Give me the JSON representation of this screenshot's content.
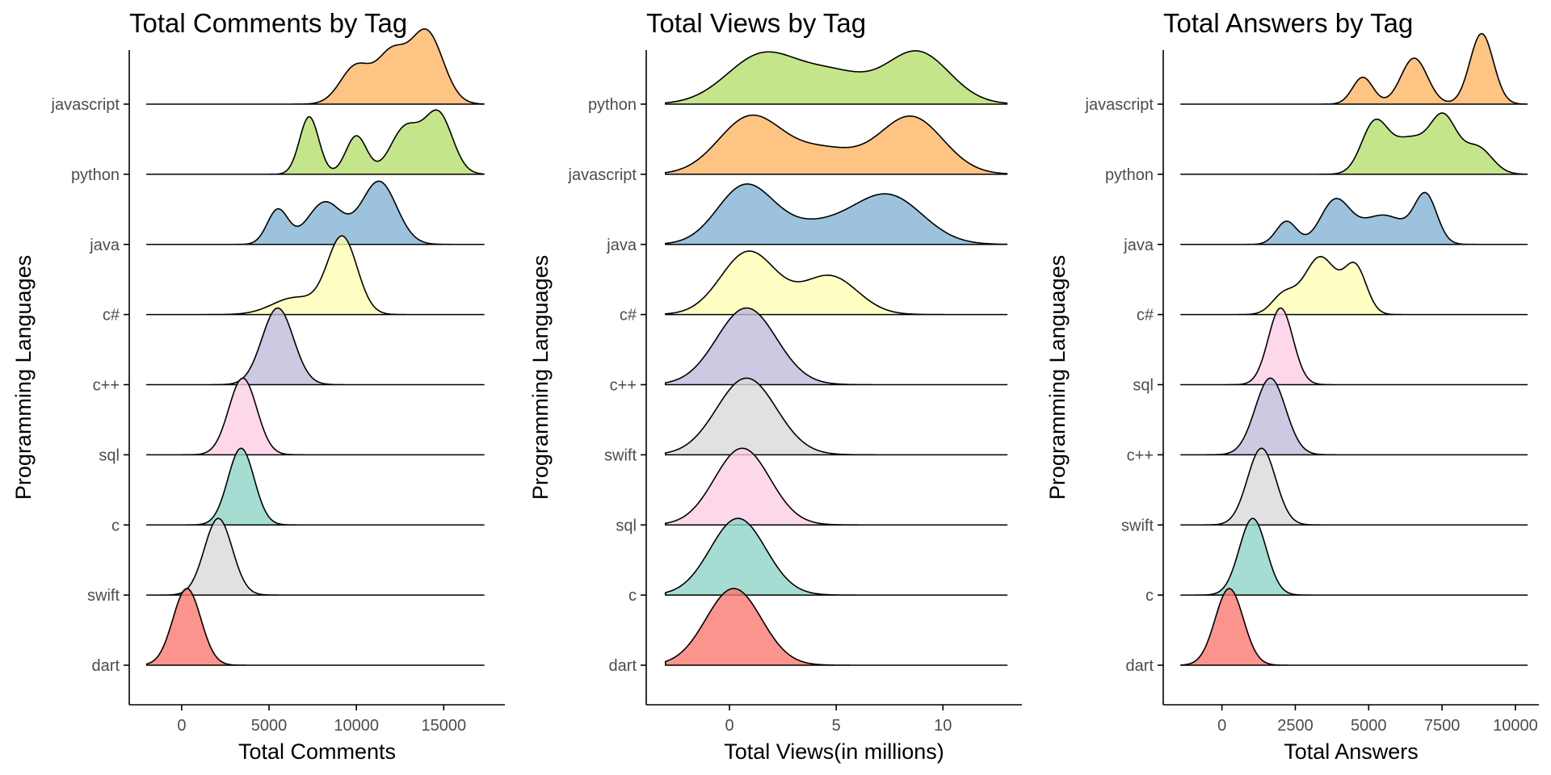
{
  "chart_data": [
    {
      "type": "ridgeline",
      "title": "Total Comments by Tag",
      "xlabel": "Total Comments",
      "ylabel": "Programming Languages",
      "xlim": [
        -3000,
        18500
      ],
      "xticks": [
        0,
        5000,
        10000,
        15000
      ],
      "xtick_labels": [
        "0",
        "5000",
        "10000",
        "15000"
      ],
      "line_x_range": [
        -2000,
        17300
      ],
      "categories_bottom_to_top": [
        "dart",
        "swift",
        "c",
        "sql",
        "c++",
        "c#",
        "java",
        "python",
        "javascript"
      ],
      "series": [
        {
          "name": "dart",
          "color": "#F8766D",
          "peaks": [
            [
              300,
              800,
              1.0
            ]
          ]
        },
        {
          "name": "swift",
          "color": "#D9D9D9",
          "peaks": [
            [
              2100,
              800,
              1.0
            ]
          ]
        },
        {
          "name": "c",
          "color": "#8DD3C7",
          "peaks": [
            [
              3400,
              750,
              1.0
            ]
          ]
        },
        {
          "name": "sql",
          "color": "#FCCDE5",
          "peaks": [
            [
              3500,
              800,
              1.0
            ]
          ]
        },
        {
          "name": "c++",
          "color": "#BEBADA",
          "peaks": [
            [
              5500,
              900,
              1.0
            ]
          ]
        },
        {
          "name": "c#",
          "color": "#FFFFB3",
          "peaks": [
            [
              9200,
              850,
              1.0
            ],
            [
              6500,
              1300,
              0.22
            ]
          ]
        },
        {
          "name": "java",
          "color": "#80B1D3",
          "peaks": [
            [
              5500,
              600,
              0.45
            ],
            [
              8200,
              1000,
              0.55
            ],
            [
              11300,
              1000,
              0.82
            ]
          ]
        },
        {
          "name": "python",
          "color": "#B3DE69",
          "peaks": [
            [
              7300,
              550,
              0.75
            ],
            [
              10000,
              600,
              0.5
            ],
            [
              12800,
              850,
              0.6
            ],
            [
              14700,
              800,
              0.78
            ]
          ]
        },
        {
          "name": "javascript",
          "color": "#FDB462",
          "peaks": [
            [
              10000,
              900,
              0.5
            ],
            [
              12000,
              800,
              0.6
            ],
            [
              14000,
              950,
              0.95
            ]
          ]
        }
      ]
    },
    {
      "type": "ridgeline",
      "title": "Total Views by Tag",
      "xlabel": "Total Views(in millions)",
      "ylabel": "Programming Languages",
      "xlim": [
        -3.9,
        13.7
      ],
      "xticks": [
        0,
        5,
        10
      ],
      "xtick_labels": [
        "0",
        "5",
        "10"
      ],
      "line_x_range": [
        -3,
        13
      ],
      "categories_bottom_to_top": [
        "dart",
        "c",
        "sql",
        "swift",
        "c++",
        "c#",
        "java",
        "javascript",
        "python"
      ],
      "series": [
        {
          "name": "dart",
          "color": "#F8766D",
          "peaks": [
            [
              0.2,
              1.3,
              1.0
            ]
          ]
        },
        {
          "name": "c",
          "color": "#8DD3C7",
          "peaks": [
            [
              0.4,
              1.3,
              1.0
            ]
          ]
        },
        {
          "name": "sql",
          "color": "#FCCDE5",
          "peaks": [
            [
              0.6,
              1.3,
              1.0
            ]
          ]
        },
        {
          "name": "swift",
          "color": "#D9D9D9",
          "peaks": [
            [
              0.8,
              1.4,
              1.0
            ]
          ]
        },
        {
          "name": "c++",
          "color": "#BEBADA",
          "peaks": [
            [
              0.8,
              1.4,
              1.0
            ]
          ]
        },
        {
          "name": "c#",
          "color": "#FFFFB3",
          "peaks": [
            [
              0.9,
              1.3,
              0.82
            ],
            [
              4.7,
              1.3,
              0.5
            ]
          ]
        },
        {
          "name": "java",
          "color": "#80B1D3",
          "peaks": [
            [
              0.7,
              1.3,
              0.72
            ],
            [
              4.0,
              2.0,
              0.25
            ],
            [
              7.5,
              1.6,
              0.6
            ]
          ]
        },
        {
          "name": "javascript",
          "color": "#FDB462",
          "peaks": [
            [
              1.0,
              1.5,
              0.75
            ],
            [
              4.5,
              1.5,
              0.3
            ],
            [
              8.5,
              1.5,
              0.75
            ]
          ]
        },
        {
          "name": "python",
          "color": "#B3DE69",
          "peaks": [
            [
              1.6,
              1.7,
              0.65
            ],
            [
              5.0,
              1.5,
              0.35
            ],
            [
              8.8,
              1.5,
              0.68
            ]
          ]
        }
      ]
    },
    {
      "type": "ridgeline",
      "title": "Total Answers by Tag",
      "xlabel": "Total Answers",
      "ylabel": "Programming Languages",
      "xlim": [
        -2000,
        10800
      ],
      "xticks": [
        0,
        2500,
        5000,
        7500,
        10000
      ],
      "xtick_labels": [
        "0",
        "2500",
        "5000",
        "7500",
        "10000"
      ],
      "line_x_range": [
        -1400,
        10400
      ],
      "categories_bottom_to_top": [
        "dart",
        "c",
        "swift",
        "c++",
        "sql",
        "c#",
        "java",
        "python",
        "javascript"
      ],
      "series": [
        {
          "name": "dart",
          "color": "#F8766D",
          "peaks": [
            [
              250,
              480,
              1.0
            ]
          ]
        },
        {
          "name": "c",
          "color": "#8DD3C7",
          "peaks": [
            [
              1050,
              460,
              1.0
            ]
          ]
        },
        {
          "name": "swift",
          "color": "#D9D9D9",
          "peaks": [
            [
              1350,
              480,
              1.0
            ]
          ]
        },
        {
          "name": "c++",
          "color": "#BEBADA",
          "peaks": [
            [
              1650,
              520,
              1.0
            ]
          ]
        },
        {
          "name": "sql",
          "color": "#FCCDE5",
          "peaks": [
            [
              2000,
              420,
              1.0
            ]
          ]
        },
        {
          "name": "c#",
          "color": "#FFFFB3",
          "peaks": [
            [
              3350,
              550,
              0.75
            ],
            [
              4550,
              380,
              0.6
            ],
            [
              2100,
              400,
              0.25
            ]
          ]
        },
        {
          "name": "java",
          "color": "#80B1D3",
          "peaks": [
            [
              2200,
              350,
              0.3
            ],
            [
              3850,
              500,
              0.55
            ],
            [
              5500,
              800,
              0.38
            ],
            [
              6950,
              380,
              0.6
            ]
          ]
        },
        {
          "name": "python",
          "color": "#B3DE69",
          "peaks": [
            [
              5200,
              450,
              0.65
            ],
            [
              6400,
              600,
              0.45
            ],
            [
              7550,
              450,
              0.7
            ],
            [
              8700,
              500,
              0.35
            ]
          ]
        },
        {
          "name": "javascript",
          "color": "#FDB462",
          "peaks": [
            [
              4800,
              350,
              0.35
            ],
            [
              6550,
              450,
              0.6
            ],
            [
              8850,
              400,
              0.92
            ]
          ]
        }
      ]
    }
  ]
}
